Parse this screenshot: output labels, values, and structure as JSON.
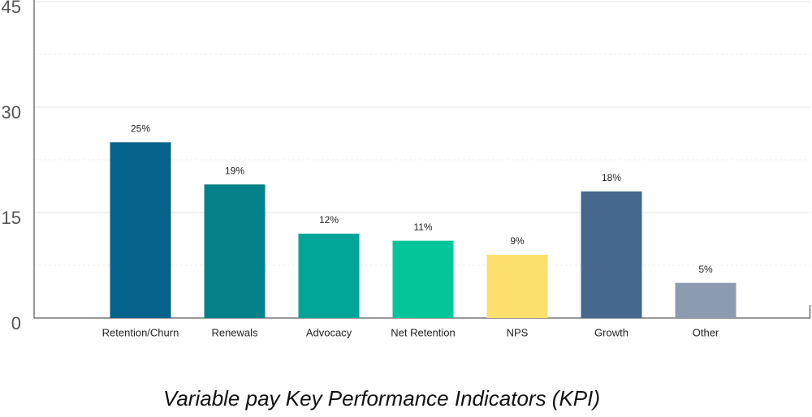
{
  "chart_data": {
    "type": "bar",
    "title": "Variable pay Key Performance Indicators (KPI)",
    "categories": [
      "Retention/Churn",
      "Renewals",
      "Advocacy",
      "Net Retention",
      "NPS",
      "Growth",
      "Other"
    ],
    "values": [
      25,
      19,
      12,
      11,
      9,
      18,
      5
    ],
    "value_labels": [
      "25%",
      "19%",
      "12%",
      "11%",
      "9%",
      "18%",
      "5%"
    ],
    "colors": [
      "#05628a",
      "#058189",
      "#00a596",
      "#03c59a",
      "#fddf6b",
      "#46678e",
      "#8c9bb2"
    ],
    "ylim": [
      0,
      45
    ],
    "yticks": [
      0,
      15,
      30,
      45
    ],
    "minor_yticks": [
      7.5,
      22.5,
      37.5
    ],
    "grid": true
  }
}
